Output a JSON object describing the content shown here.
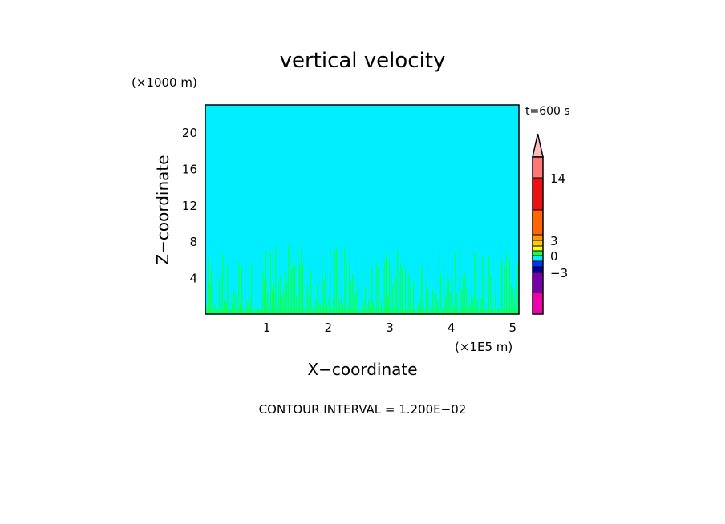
{
  "chart_data": {
    "type": "heatmap",
    "subtype": "filled-contour",
    "title": "vertical velocity",
    "xlabel": "X−coordinate",
    "ylabel": "Z−coordinate",
    "x_unit": "(×1E5 m)",
    "y_unit": "(×1000 m)",
    "time_label": "t=600 s",
    "footer": "CONTOUR INTERVAL = 1.200E−02",
    "xlim": [
      0,
      5.1
    ],
    "ylim": [
      0,
      23
    ],
    "xticks": [
      {
        "value": 1,
        "label": "1"
      },
      {
        "value": 2,
        "label": "2"
      },
      {
        "value": 3,
        "label": "3"
      },
      {
        "value": 4,
        "label": "4"
      },
      {
        "value": 5,
        "label": "5"
      }
    ],
    "yticks": [
      {
        "value": 4,
        "label": "4"
      },
      {
        "value": 8,
        "label": "8"
      },
      {
        "value": 12,
        "label": "12"
      },
      {
        "value": 16,
        "label": "16"
      },
      {
        "value": 20,
        "label": "20"
      }
    ],
    "background_color": "#00eeff",
    "field_color": "#11ff55",
    "field_peak_heights": [
      7.5,
      6.8,
      8.8,
      7.9,
      6.2,
      8.6,
      7.0,
      9.2,
      6.5,
      7.6,
      8.7,
      6.9,
      7.8,
      6.4,
      8.3,
      7.1,
      6.0,
      6.3,
      7.4,
      8.5,
      6.7,
      7.9,
      6.1,
      7.2,
      6.6
    ],
    "colorbar": {
      "segments": [
        {
          "color": "#ffbbbb",
          "shape": "triangle"
        },
        {
          "color": "#ff7777"
        },
        {
          "color": "#ee1111"
        },
        {
          "color": "#ff6600"
        },
        {
          "color": "#ff9900"
        },
        {
          "color": "#ffcc00"
        },
        {
          "color": "#ffff00"
        },
        {
          "color": "#11ff55"
        },
        {
          "color": "#00eeff"
        },
        {
          "color": "#0033ff"
        },
        {
          "color": "#000099"
        },
        {
          "color": "#7700aa"
        },
        {
          "color": "#ee00aa"
        }
      ],
      "labels": [
        {
          "text": "14",
          "at_segment_boundary": 2
        },
        {
          "text": "3",
          "at_segment_boundary": 5
        },
        {
          "text": "0",
          "at_segment_boundary": 8
        },
        {
          "text": "−3",
          "at_segment_boundary": 11
        }
      ]
    }
  }
}
